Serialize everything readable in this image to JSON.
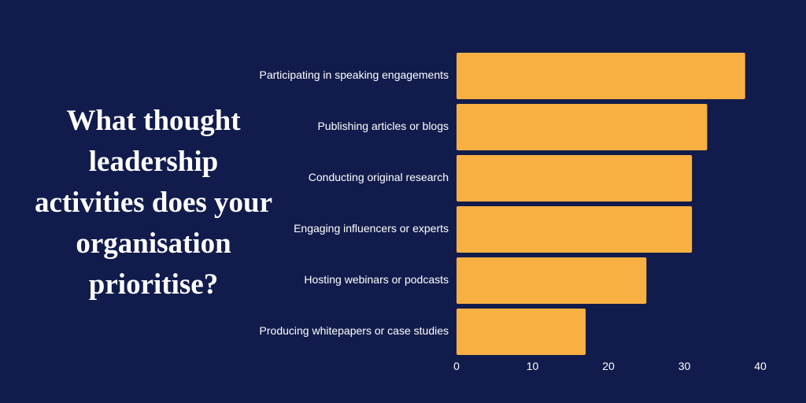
{
  "title": "What thought leadership activities does your organisation prioritise?",
  "colors": {
    "background": "#121c4c",
    "bar": "#f9b042",
    "text": "#ffffff"
  },
  "chart_data": {
    "type": "bar",
    "orientation": "horizontal",
    "categories": [
      "Participating in speaking engagements",
      "Publishing articles or blogs",
      "Conducting original research",
      "Engaging influencers or experts",
      "Hosting webinars or podcasts",
      "Producing whitepapers or case studies"
    ],
    "values": [
      38,
      33,
      31,
      31,
      25,
      17
    ],
    "xlim": [
      0,
      40
    ],
    "xticks": [
      "0",
      "10",
      "20",
      "30",
      "40"
    ],
    "xlabel": "",
    "ylabel": "",
    "grid": false,
    "legend": "none"
  }
}
